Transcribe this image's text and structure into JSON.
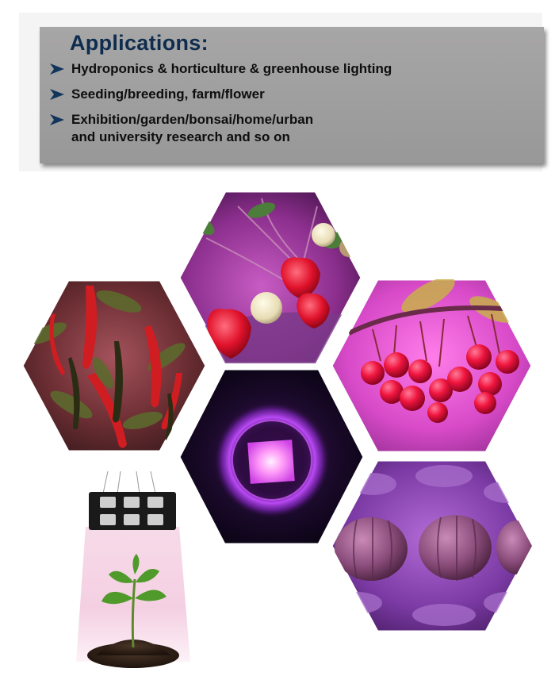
{
  "applications": {
    "title": "Applications:",
    "items": [
      "Hydroponics & horticulture & greenhouse lighting",
      "Seeding/breeding, farm/flower",
      "Exhibition/garden/bonsai/home/urban"
    ],
    "item_3_line2": "and university research and so on"
  },
  "colors": {
    "title": "#0e2c4e",
    "box": "#a3a2a2",
    "grow_light": "#b63cff"
  },
  "icons": [
    "arrow-bullet-icon"
  ]
}
